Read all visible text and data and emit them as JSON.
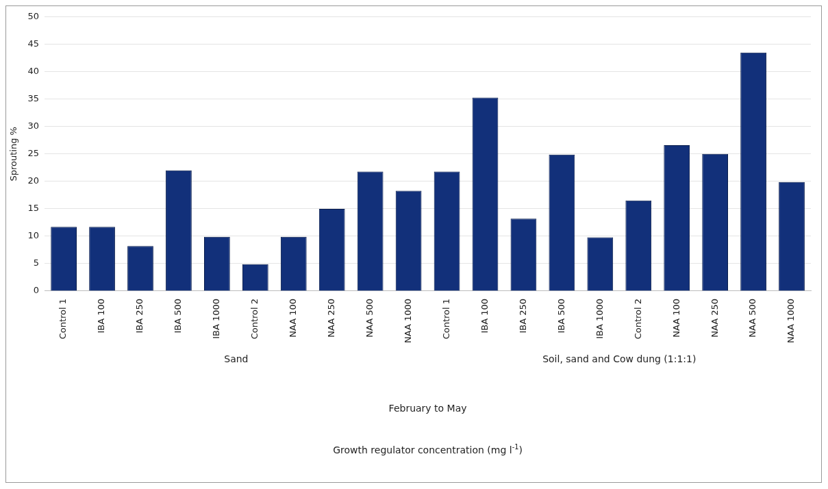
{
  "chart_data": {
    "type": "bar",
    "ylabel": "Sprouting %",
    "categories": [
      "Control 1",
      "IBA 100",
      "IBA 250",
      "IBA 500",
      "IBA 1000",
      "Control 2",
      "NAA 100",
      "NAA 250",
      "NAA 500",
      "NAA 1000",
      "Control 1",
      "IBA 100",
      "IBA 250",
      "IBA 500",
      "IBA 1000",
      "Control 2",
      "NAA 100",
      "NAA 250",
      "NAA 500",
      "NAA 1000"
    ],
    "values": [
      11.7,
      11.7,
      8.2,
      22,
      9.9,
      4.9,
      9.9,
      15,
      21.8,
      18.3,
      21.8,
      35.3,
      13.2,
      24.9,
      9.8,
      16.5,
      26.6,
      25,
      43.5,
      19.9
    ],
    "color": "#12307a",
    "annotations": [
      "Sand",
      "Soil, sand and Cow dung (1:1:1)",
      "February to May",
      "Growth regulator concentration (mg l$^{-1}$)"
    ],
    "ylim": [
      0,
      50
    ],
    "yticks": [
      0,
      5,
      10,
      15,
      20,
      25,
      30,
      35,
      40,
      45,
      50
    ],
    "grid": "y",
    "legend": false
  }
}
